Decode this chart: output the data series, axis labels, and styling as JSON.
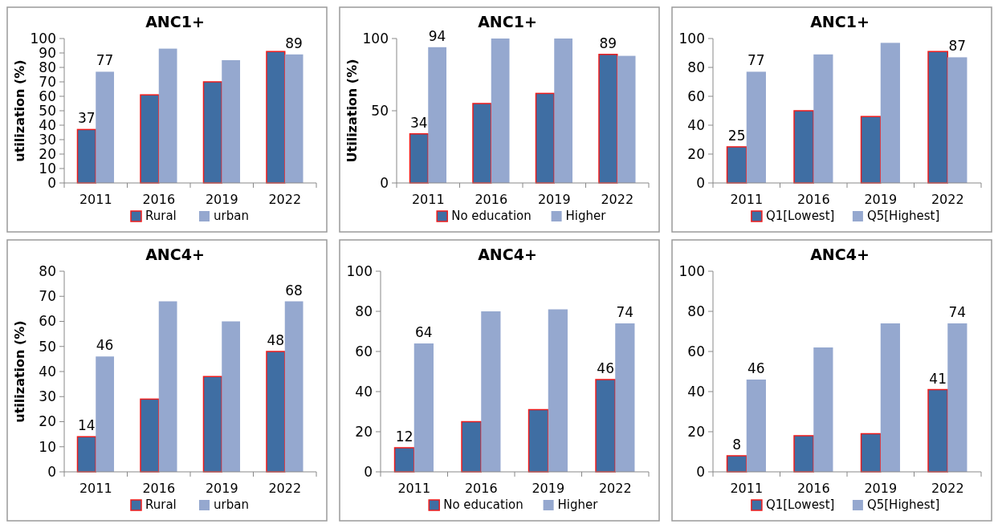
{
  "chart_data": [
    {
      "type": "bar",
      "title": "ANC1+",
      "ylabel": "utilization (%)",
      "categories": [
        "2011",
        "2016",
        "2019",
        "2022"
      ],
      "ylim": [
        0,
        100
      ],
      "yticks": [
        0,
        10,
        20,
        30,
        40,
        50,
        60,
        70,
        80,
        90,
        100
      ],
      "legend": "bottom",
      "series": [
        {
          "name": "Rural",
          "color": "#3f6ea3",
          "values": [
            37,
            61,
            70,
            91
          ],
          "value_labels": [
            "37",
            null,
            null,
            null
          ]
        },
        {
          "name": "urban",
          "color": "#95a8cf",
          "values": [
            77,
            93,
            85,
            89
          ],
          "value_labels": [
            "77",
            null,
            null,
            "89"
          ]
        }
      ]
    },
    {
      "type": "bar",
      "title": "ANC1+",
      "ylabel": "Utilization (%)",
      "categories": [
        "2011",
        "2016",
        "2019",
        "2022"
      ],
      "ylim": [
        0,
        100
      ],
      "yticks": [
        0,
        50,
        100
      ],
      "legend": "bottom",
      "series": [
        {
          "name": "No education",
          "color": "#3f6ea3",
          "values": [
            34,
            55,
            62,
            89
          ],
          "value_labels": [
            "34",
            null,
            null,
            "89"
          ]
        },
        {
          "name": "Higher",
          "color": "#95a8cf",
          "values": [
            94,
            100,
            100,
            88
          ],
          "value_labels": [
            "94",
            null,
            null,
            null
          ]
        }
      ]
    },
    {
      "type": "bar",
      "title": "ANC1+",
      "categories": [
        "2011",
        "2016",
        "2019",
        "2022"
      ],
      "ylim": [
        0,
        100
      ],
      "yticks": [
        0,
        20,
        40,
        60,
        80,
        100
      ],
      "legend": "bottom",
      "series": [
        {
          "name": "Q1[Lowest]",
          "color": "#3f6ea3",
          "values": [
            25,
            50,
            46,
            91
          ],
          "value_labels": [
            "25",
            null,
            null,
            null
          ]
        },
        {
          "name": "Q5[Highest]",
          "color": "#95a8cf",
          "values": [
            77,
            89,
            97,
            87
          ],
          "value_labels": [
            "77",
            null,
            null,
            "87"
          ]
        }
      ]
    },
    {
      "type": "bar",
      "title": "ANC4+",
      "ylabel": "utilization (%)",
      "categories": [
        "2011",
        "2016",
        "2019",
        "2022"
      ],
      "ylim": [
        0,
        80
      ],
      "yticks": [
        0,
        10,
        20,
        30,
        40,
        50,
        60,
        70,
        80
      ],
      "legend": "bottom",
      "series": [
        {
          "name": "Rural",
          "color": "#3f6ea3",
          "values": [
            14,
            29,
            38,
            48
          ],
          "value_labels": [
            "14",
            null,
            null,
            "48"
          ]
        },
        {
          "name": "urban",
          "color": "#95a8cf",
          "values": [
            46,
            68,
            60,
            68
          ],
          "value_labels": [
            "46",
            null,
            null,
            "68"
          ]
        }
      ]
    },
    {
      "type": "bar",
      "title": "ANC4+",
      "categories": [
        "2011",
        "2016",
        "2019",
        "2022"
      ],
      "ylim": [
        0,
        100
      ],
      "yticks": [
        0,
        20,
        40,
        60,
        80,
        100
      ],
      "legend": "bottom",
      "series": [
        {
          "name": "No education",
          "color": "#3f6ea3",
          "values": [
            12,
            25,
            31,
            46
          ],
          "value_labels": [
            "12",
            null,
            null,
            "46"
          ]
        },
        {
          "name": "Higher",
          "color": "#95a8cf",
          "values": [
            64,
            80,
            81,
            74
          ],
          "value_labels": [
            "64",
            null,
            null,
            "74"
          ]
        }
      ]
    },
    {
      "type": "bar",
      "title": "ANC4+",
      "categories": [
        "2011",
        "2016",
        "2019",
        "2022"
      ],
      "ylim": [
        0,
        100
      ],
      "yticks": [
        0,
        20,
        40,
        60,
        80,
        100
      ],
      "legend": "bottom",
      "series": [
        {
          "name": "Q1[Lowest]",
          "color": "#3f6ea3",
          "values": [
            8,
            18,
            19,
            41
          ],
          "value_labels": [
            "8",
            null,
            null,
            "41"
          ]
        },
        {
          "name": "Q5[Highest]",
          "color": "#95a8cf",
          "values": [
            46,
            62,
            74,
            74
          ],
          "value_labels": [
            "46",
            null,
            null,
            "74"
          ]
        }
      ]
    }
  ]
}
